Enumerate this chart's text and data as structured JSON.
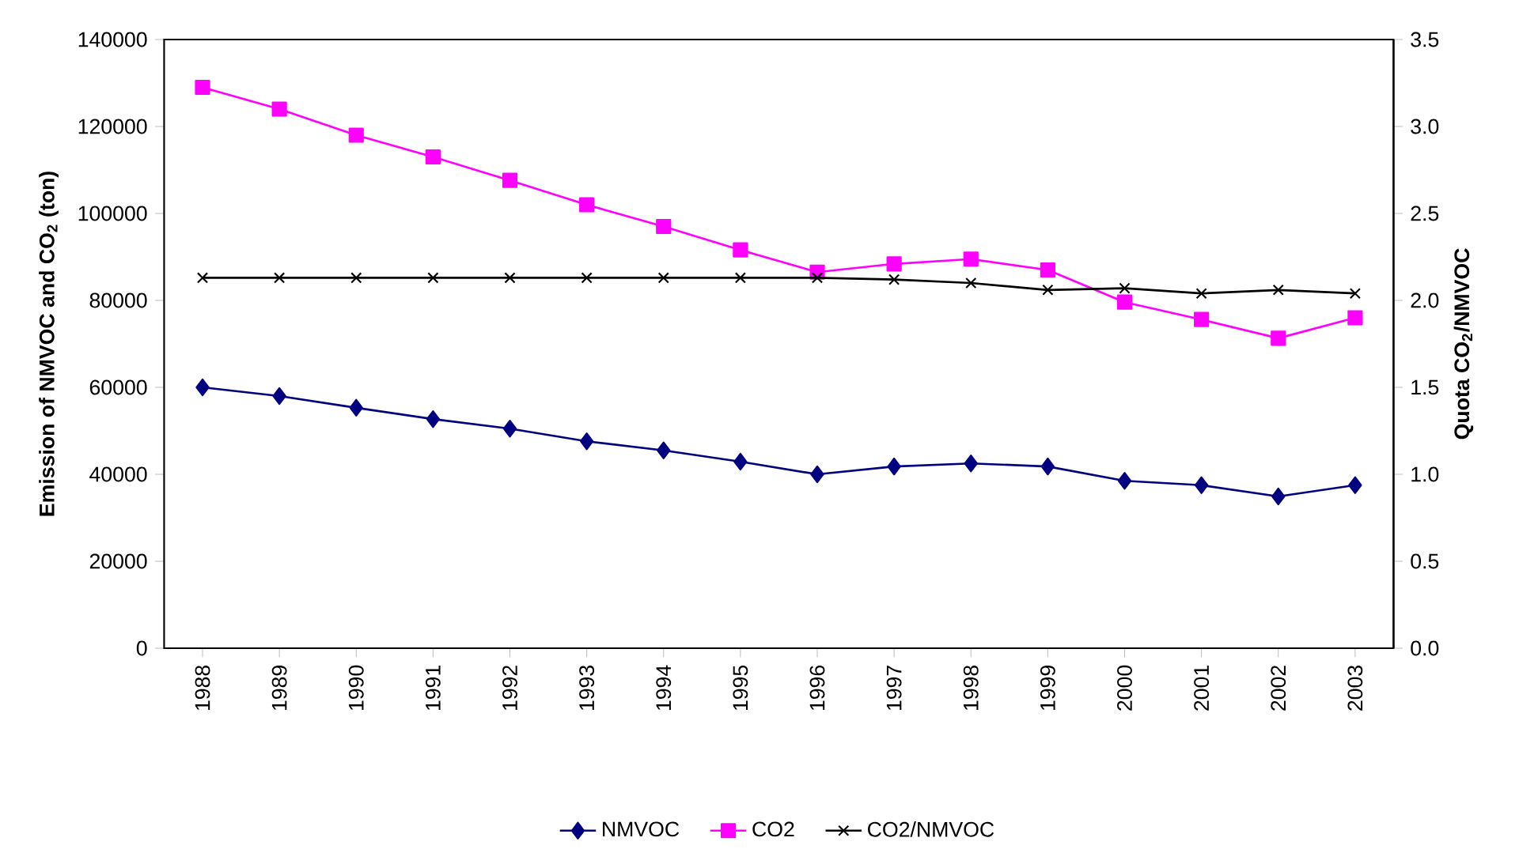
{
  "chart_data": {
    "type": "line",
    "ylabel": "Emission of NMVOC and CO$_{2}$ (ton)",
    "y2label": "Quota CO$_{2}$/NMVOC",
    "categories": [
      "1988",
      "1989",
      "1990",
      "1991",
      "1992",
      "1993",
      "1994",
      "1995",
      "1996",
      "1997",
      "1998",
      "1999",
      "2000",
      "2001",
      "2002",
      "2003"
    ],
    "series": [
      {
        "name": "NMVOC",
        "color": "#000080",
        "marker": "diamond",
        "values": [
          60000,
          58000,
          55300,
          52700,
          50500,
          47600,
          45500,
          42900,
          40000,
          41800,
          42500,
          41800,
          38500,
          37500,
          34900,
          37500
        ]
      },
      {
        "name": "CO2",
        "color": "#ff00ff",
        "marker": "square",
        "values": [
          129000,
          124000,
          118000,
          113000,
          107600,
          102000,
          97000,
          91600,
          86500,
          88400,
          89500,
          87000,
          79600,
          75600,
          71300,
          76000
        ]
      },
      {
        "name": "CO2/NMVOC",
        "color": "#000000",
        "marker": "cross",
        "axis": "y2",
        "values": [
          2.13,
          2.13,
          2.13,
          2.13,
          2.13,
          2.13,
          2.13,
          2.13,
          2.13,
          2.12,
          2.1,
          2.06,
          2.07,
          2.04,
          2.06,
          2.04
        ]
      }
    ],
    "ylim": [
      0,
      140000
    ],
    "yticks": [
      0,
      20000,
      40000,
      60000,
      80000,
      100000,
      120000,
      140000
    ],
    "y2lim": [
      0,
      3.5
    ],
    "y2ticks": [
      {
        "value": 0,
        "label": "0.0"
      },
      {
        "value": 0.5,
        "label": "0.5"
      },
      {
        "value": 1,
        "label": "1.0"
      },
      {
        "value": 1.5,
        "label": "1.5"
      },
      {
        "value": 2,
        "label": "2.0"
      },
      {
        "value": 2.5,
        "label": "2.5"
      },
      {
        "value": 3,
        "label": "3.0"
      },
      {
        "value": 3.5,
        "label": "3.5"
      }
    ],
    "legend": "bottom",
    "line_style": "solid"
  }
}
